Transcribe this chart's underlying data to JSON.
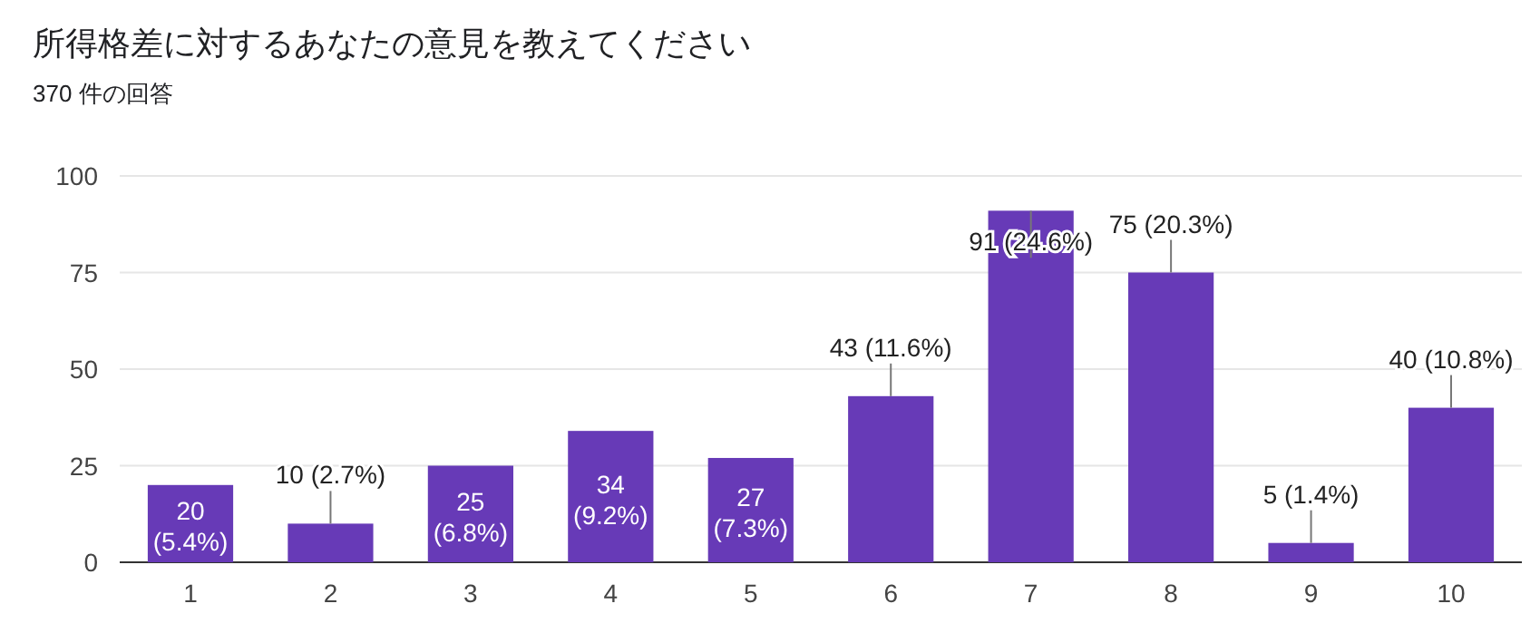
{
  "chart_data": {
    "type": "bar",
    "title": "所得格差に対するあなたの意見を教えてください",
    "subtitle": "370 件の回答",
    "categories": [
      "1",
      "2",
      "3",
      "4",
      "5",
      "6",
      "7",
      "8",
      "9",
      "10"
    ],
    "values": [
      20,
      10,
      25,
      34,
      27,
      43,
      91,
      75,
      5,
      40
    ],
    "value_labels": [
      "20 (5.4%)",
      "10 (2.7%)",
      "25 (6.8%)",
      "34 (9.2%)",
      "27 (7.3%)",
      "43 (11.6%)",
      "91 (24.6%)",
      "75 (20.3%)",
      "5 (1.4%)",
      "40 (10.8%)"
    ],
    "color": "#673ab7",
    "ylim": [
      0,
      100
    ],
    "yticks": [
      0,
      25,
      50,
      75,
      100
    ],
    "grid": "y"
  }
}
